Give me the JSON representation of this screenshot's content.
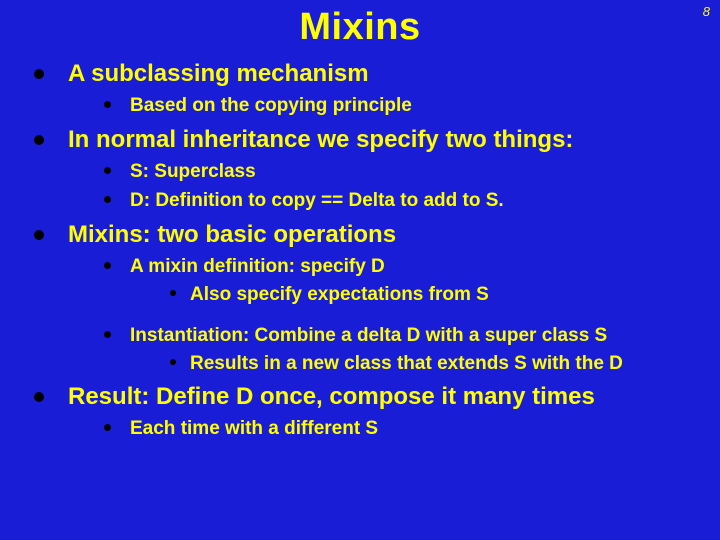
{
  "colors": {
    "background": "#1a1dd6",
    "title": "#ffff00",
    "text": "#ffff00",
    "bullet": "#000000",
    "pageNumber": "#ffff00"
  },
  "pageNumber": "8",
  "title": "Mixins",
  "items": [
    {
      "text": "A subclassing mechanism",
      "children": [
        {
          "text": "Based on the copying principle"
        }
      ]
    },
    {
      "text": "In normal inheritance we specify two things:",
      "children": [
        {
          "text": "S: Superclass"
        },
        {
          "text": "D: Definition to copy == Delta to add to S."
        }
      ]
    },
    {
      "text": "Mixins: two basic operations",
      "children": [
        {
          "text": "A mixin definition: specify D",
          "children": [
            {
              "text": "Also specify expectations from S"
            }
          ]
        },
        {
          "text": "Instantiation: Combine a delta D with a super class S",
          "children": [
            {
              "text": "Results in a new class that extends S with the D"
            }
          ]
        }
      ]
    },
    {
      "text": "Result: Define D once, compose it many times",
      "children": [
        {
          "text": "Each time with a different S"
        }
      ]
    }
  ]
}
